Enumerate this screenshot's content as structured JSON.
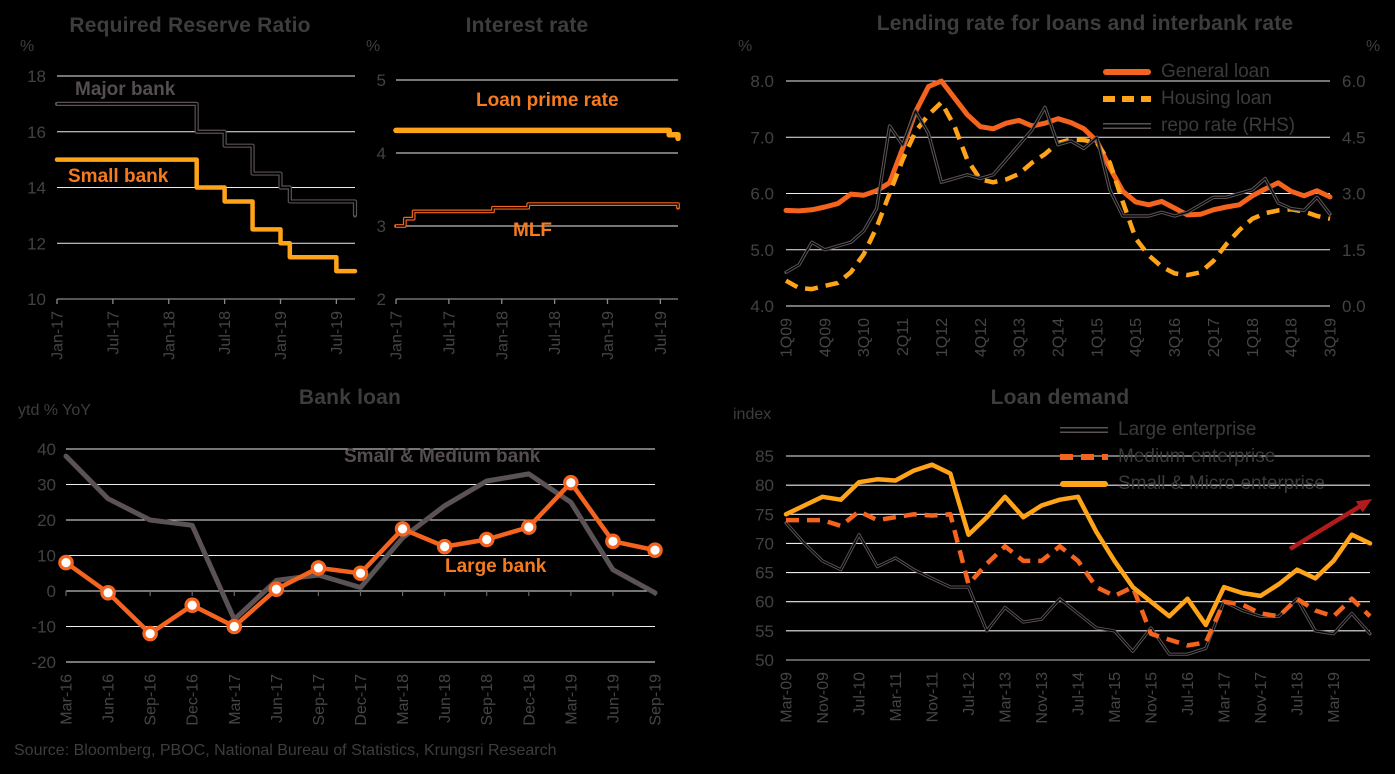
{
  "source_note": "Source: Bloomberg, PBOC, National Bureau of Statistics, Krungsri Research",
  "colors": {
    "background": "#000000",
    "grid": "#edecea",
    "axis_gray": "#8a8a8a",
    "tick_text": "#424242",
    "orange": "#f4641e",
    "amber": "#ffa319",
    "gray_line": "#5a5254",
    "arrow_red": "#b01c1c"
  },
  "chart_data": [
    {
      "id": "required-reserve-ratio",
      "type": "line",
      "title": "Required Reserve Ratio",
      "unit": "%",
      "ylim": [
        10,
        18
      ],
      "yticks": [
        {
          "v": 18,
          "label": "18"
        },
        {
          "v": 16,
          "label": "16"
        },
        {
          "v": 14,
          "label": "14"
        },
        {
          "v": 12,
          "label": "12"
        },
        {
          "v": 10,
          "label": "10"
        }
      ],
      "n_points": 33,
      "tick_every": 6,
      "x_tick_labels": [
        "Jan-17",
        "Jul-17",
        "Jan-18",
        "Jul-18",
        "Jan-19",
        "Jul-19"
      ],
      "series": [
        {
          "name": "Major bank",
          "color_key": "gray",
          "line": "double",
          "step": true,
          "values": [
            17,
            17,
            17,
            17,
            17,
            17,
            17,
            17,
            17,
            17,
            17,
            17,
            17,
            17,
            17,
            16,
            16,
            16,
            15.5,
            15.5,
            15.5,
            14.5,
            14.5,
            14.5,
            14,
            13.5,
            13.5,
            13.5,
            13.5,
            13.5,
            13.5,
            13.5,
            13
          ]
        },
        {
          "name": "Small bank",
          "color_key": "amber",
          "line": "solid",
          "step": true,
          "values": [
            15,
            15,
            15,
            15,
            15,
            15,
            15,
            15,
            15,
            15,
            15,
            15,
            15,
            15,
            15,
            14,
            14,
            14,
            13.5,
            13.5,
            13.5,
            12.5,
            12.5,
            12.5,
            12,
            11.5,
            11.5,
            11.5,
            11.5,
            11.5,
            11,
            11,
            11
          ]
        }
      ]
    },
    {
      "id": "interest-rate",
      "type": "line",
      "title": "Interest rate",
      "unit": "%",
      "ylim": [
        2,
        5
      ],
      "yticks": [
        {
          "v": 5,
          "label": "5"
        },
        {
          "v": 4,
          "label": "4"
        },
        {
          "v": 3,
          "label": "3"
        },
        {
          "v": 2,
          "label": "2"
        }
      ],
      "n_points": 33,
      "tick_every": 6,
      "x_tick_labels": [
        "Jan-17",
        "Jul-17",
        "Jan-18",
        "Jul-18",
        "Jan-19",
        "Jul-19"
      ],
      "series": [
        {
          "name": "Loan prime rate",
          "color_key": "amber",
          "line": "solid",
          "step": true,
          "values": [
            4.31,
            4.31,
            4.31,
            4.31,
            4.31,
            4.31,
            4.31,
            4.31,
            4.31,
            4.31,
            4.31,
            4.31,
            4.31,
            4.31,
            4.31,
            4.31,
            4.31,
            4.31,
            4.31,
            4.31,
            4.31,
            4.31,
            4.31,
            4.31,
            4.31,
            4.31,
            4.31,
            4.31,
            4.31,
            4.31,
            4.31,
            4.25,
            4.2
          ]
        },
        {
          "name": "MLF",
          "color_key": "orange",
          "line": "double",
          "step": true,
          "values": [
            3.0,
            3.1,
            3.2,
            3.2,
            3.2,
            3.2,
            3.2,
            3.2,
            3.2,
            3.2,
            3.2,
            3.25,
            3.25,
            3.25,
            3.25,
            3.3,
            3.3,
            3.3,
            3.3,
            3.3,
            3.3,
            3.3,
            3.3,
            3.3,
            3.3,
            3.3,
            3.3,
            3.3,
            3.3,
            3.3,
            3.3,
            3.3,
            3.25
          ]
        }
      ]
    },
    {
      "id": "lending-interbank-rate",
      "type": "line",
      "title": "Lending rate for loans and interbank rate",
      "unit_left": "%",
      "unit_right": "%",
      "ylim": [
        4,
        8
      ],
      "yticks": [
        {
          "v": 8,
          "label": "8.0"
        },
        {
          "v": 7,
          "label": "7.0"
        },
        {
          "v": 6,
          "label": "6.0"
        },
        {
          "v": 5,
          "label": "5.0"
        },
        {
          "v": 4,
          "label": "4.0"
        }
      ],
      "ylim_right": [
        0,
        6
      ],
      "yticks_right": [
        {
          "v": 6,
          "label": "6.0"
        },
        {
          "v": 4.5,
          "label": "4.5"
        },
        {
          "v": 3,
          "label": "3.0"
        },
        {
          "v": 1.5,
          "label": "1.5"
        },
        {
          "v": 0,
          "label": "0.0"
        }
      ],
      "n_points": 43,
      "tick_every": 3,
      "x_tick_labels": [
        "1Q09",
        "4Q09",
        "3Q10",
        "2Q11",
        "1Q12",
        "4Q12",
        "3Q13",
        "2Q14",
        "1Q15",
        "4Q15",
        "3Q16",
        "2Q17",
        "1Q18",
        "4Q18",
        "3Q19"
      ],
      "series": [
        {
          "name": "General loan",
          "color_key": "orange",
          "line": "solid",
          "axis": "left",
          "values": [
            5.7,
            5.69,
            5.71,
            5.76,
            5.82,
            5.99,
            5.97,
            6.05,
            6.19,
            6.8,
            7.45,
            7.9,
            8.0,
            7.7,
            7.4,
            7.19,
            7.15,
            7.25,
            7.3,
            7.2,
            7.25,
            7.33,
            7.26,
            7.15,
            6.93,
            6.46,
            6.04,
            5.85,
            5.8,
            5.86,
            5.74,
            5.62,
            5.63,
            5.71,
            5.76,
            5.8,
            5.96,
            6.08,
            6.19,
            6.04,
            5.96,
            6.05,
            5.94
          ]
        },
        {
          "name": "Housing loan",
          "color_key": "amber",
          "line": "dashed",
          "axis": "left",
          "values": [
            4.45,
            4.32,
            4.3,
            4.36,
            4.41,
            4.6,
            4.92,
            5.4,
            6.0,
            6.6,
            7.1,
            7.4,
            7.62,
            7.2,
            6.6,
            6.25,
            6.2,
            6.25,
            6.35,
            6.55,
            6.7,
            6.9,
            6.96,
            6.95,
            6.9,
            6.55,
            5.85,
            5.2,
            4.9,
            4.7,
            4.58,
            4.55,
            4.6,
            4.8,
            5.1,
            5.35,
            5.55,
            5.65,
            5.7,
            5.72,
            5.68,
            5.6,
            5.55
          ]
        },
        {
          "name": "repo rate (RHS)",
          "color_key": "gray",
          "line": "double",
          "axis": "right",
          "values": [
            0.9,
            1.1,
            1.7,
            1.5,
            1.6,
            1.7,
            2.0,
            2.6,
            4.8,
            4.3,
            5.2,
            4.6,
            3.3,
            3.4,
            3.5,
            3.4,
            3.5,
            3.9,
            4.3,
            4.7,
            5.3,
            4.3,
            4.4,
            4.2,
            4.5,
            3.1,
            2.4,
            2.4,
            2.4,
            2.5,
            2.4,
            2.5,
            2.7,
            2.9,
            2.9,
            3.0,
            3.1,
            3.4,
            2.75,
            2.6,
            2.55,
            2.9,
            2.45
          ]
        }
      ]
    },
    {
      "id": "bank-loan",
      "type": "line",
      "title": "Bank loan",
      "unit": "ytd % YoY",
      "ylim": [
        -20,
        40
      ],
      "yticks": [
        {
          "v": 40,
          "label": "40"
        },
        {
          "v": 30,
          "label": "30"
        },
        {
          "v": 20,
          "label": "20"
        },
        {
          "v": 10,
          "label": "10"
        },
        {
          "v": 0,
          "label": "0"
        },
        {
          "v": -10,
          "label": "-10"
        },
        {
          "v": -20,
          "label": "-20"
        }
      ],
      "n_points": 15,
      "tick_every": 1,
      "x_tick_labels": [
        "Mar-16",
        "Jun-16",
        "Sep-16",
        "Dec-16",
        "Mar-17",
        "Jun-17",
        "Sep-17",
        "Dec-17",
        "Mar-18",
        "Jun-18",
        "Sep-18",
        "Dec-18",
        "Mar-19",
        "Jun-19",
        "Sep-19"
      ],
      "series": [
        {
          "name": "Small & Medium bank",
          "color_key": "gray",
          "line": "solid",
          "values": [
            38,
            26,
            20,
            18.5,
            -8,
            3,
            4.5,
            1,
            15,
            24,
            31,
            33,
            25,
            6,
            -0.5
          ]
        },
        {
          "name": "Large bank",
          "color_key": "orange",
          "line": "marker",
          "values": [
            8,
            -0.5,
            -12,
            -4,
            -10,
            0.5,
            6.5,
            5,
            17.5,
            12.5,
            14.5,
            18,
            30.5,
            14,
            11.5
          ]
        }
      ]
    },
    {
      "id": "loan-demand",
      "type": "line",
      "title": "Loan demand",
      "unit": "index",
      "ylim": [
        50,
        85
      ],
      "yticks": [
        {
          "v": 85,
          "label": "85"
        },
        {
          "v": 80,
          "label": "80"
        },
        {
          "v": 75,
          "label": "75"
        },
        {
          "v": 70,
          "label": "70"
        },
        {
          "v": 65,
          "label": "65"
        },
        {
          "v": 60,
          "label": "60"
        },
        {
          "v": 55,
          "label": "55"
        },
        {
          "v": 50,
          "label": "50"
        }
      ],
      "n_points": 33,
      "tick_every": 2,
      "x_tick_labels": [
        "Mar-09",
        "Nov-09",
        "Jul-10",
        "Mar-11",
        "Nov-11",
        "Jul-12",
        "Mar-13",
        "Nov-13",
        "Jul-14",
        "Mar-15",
        "Nov-15",
        "Jul-16",
        "Mar-17",
        "Nov-17",
        "Jul-18",
        "Mar-19"
      ],
      "annotation": {
        "type": "up-arrow",
        "color": "#b01c1c"
      },
      "series": [
        {
          "name": "Large enterprise",
          "color_key": "gray",
          "line": "double",
          "values": [
            73.5,
            70,
            67,
            65.5,
            71.5,
            66,
            67.5,
            65.5,
            64,
            62.5,
            62.5,
            55,
            59,
            56.5,
            57,
            60.5,
            58,
            55.5,
            55,
            51.5,
            55.5,
            51,
            51,
            52,
            60,
            58.5,
            57.5,
            57.5,
            60.5,
            55,
            54.5,
            58,
            54.5
          ]
        },
        {
          "name": "Medium enterprise",
          "color_key": "orange",
          "line": "dashed",
          "values": [
            74,
            74,
            74,
            73,
            75.5,
            74,
            74.5,
            75,
            74.8,
            75,
            63,
            66.5,
            69.5,
            67,
            67,
            69.5,
            67,
            62.5,
            61,
            62.5,
            54.5,
            53.5,
            52.5,
            53,
            60,
            59.5,
            58,
            57.5,
            60.5,
            58.5,
            57.5,
            60.5,
            57.5
          ]
        },
        {
          "name": "Small & Micro enterprise",
          "color_key": "amber",
          "line": "solid",
          "values": [
            75,
            76.5,
            78,
            77.5,
            80.5,
            81,
            80.8,
            82.5,
            83.5,
            82,
            71.5,
            74.5,
            78,
            74.5,
            76.5,
            77.5,
            78,
            72,
            67,
            62.5,
            60,
            57.5,
            60.5,
            56,
            62.5,
            61.5,
            61,
            63,
            65.5,
            64,
            67,
            71.5,
            70
          ]
        }
      ]
    }
  ]
}
